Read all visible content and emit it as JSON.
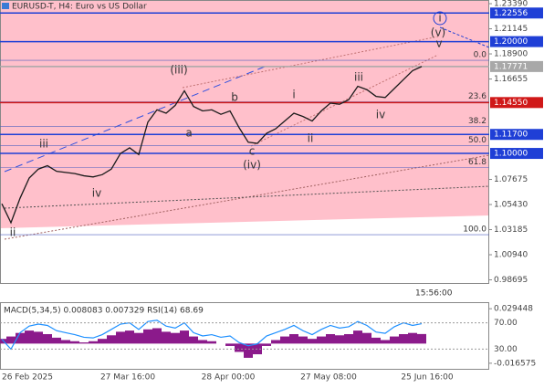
{
  "chart_data": {
    "type": "line",
    "title": "EURUSD-T, H4:  Euro vs US Dollar",
    "timer": "15:56:00",
    "color": "#1a1a1a",
    "values": [
      1.055,
      1.038,
      1.06,
      1.078,
      1.086,
      1.089,
      1.084,
      1.083,
      1.082,
      1.08,
      1.079,
      1.081,
      1.086,
      1.1,
      1.105,
      1.099,
      1.128,
      1.139,
      1.136,
      1.143,
      1.156,
      1.142,
      1.138,
      1.139,
      1.135,
      1.138,
      1.123,
      1.11,
      1.109,
      1.118,
      1.122,
      1.129,
      1.136,
      1.133,
      1.129,
      1.138,
      1.145,
      1.144,
      1.148,
      1.16,
      1.157,
      1.151,
      1.15,
      1.158,
      1.166,
      1.174,
      1.1777
    ],
    "ylim": [
      0.9833,
      1.2372
    ],
    "yticks": [
      {
        "value": 1.2339,
        "label": "1.23390"
      },
      {
        "value": 1.21145,
        "label": "1.21145"
      },
      {
        "value": 1.189,
        "label": "1.18900"
      },
      {
        "value": 1.16655,
        "label": "1.16655"
      },
      {
        "value": 1.07675,
        "label": "1.07675"
      },
      {
        "value": 1.0543,
        "label": "1.05430"
      },
      {
        "value": 1.03185,
        "label": "1.03185"
      },
      {
        "value": 1.0094,
        "label": "1.00940"
      },
      {
        "value": 0.98695,
        "label": "0.98695"
      }
    ],
    "levels": [
      {
        "value": 1.22556,
        "label": "1.22556",
        "color": "#1f3fd6"
      },
      {
        "value": 1.2,
        "label": "1.20000",
        "color": "#1f3fd6"
      },
      {
        "value": 1.17771,
        "label": "1.17771",
        "color": "#a8a8a8"
      },
      {
        "value": 1.1455,
        "label": "1.14550",
        "color": "#d01818"
      },
      {
        "value": 1.117,
        "label": "1.11700",
        "color": "#1f3fd6"
      },
      {
        "value": 1.1,
        "label": "1.10000",
        "color": "#1f3fd6"
      }
    ],
    "fib": [
      {
        "label": "0.0",
        "value": 1.1833
      },
      {
        "label": "23.6",
        "value": 1.1461
      },
      {
        "label": "38.2",
        "value": 1.1241
      },
      {
        "label": "50.0",
        "value": 1.107
      },
      {
        "label": "61.8",
        "value": 1.0875
      },
      {
        "label": "100.0",
        "value": 1.0273
      }
    ],
    "xlabels": [
      "26 Feb 2025",
      "27 Mar 16:00",
      "28 Apr 00:00",
      "27 May 08:00",
      "25 Jun 16:00"
    ],
    "annotations": [
      {
        "text": "(iii)",
        "color": "#c0392b"
      },
      {
        "text": "b",
        "color": "#777"
      },
      {
        "text": "a",
        "color": "#777"
      },
      {
        "text": "(iv)",
        "color": "#c0392b"
      },
      {
        "text": "c",
        "color": "#777"
      },
      {
        "text": "i",
        "color": "#777"
      },
      {
        "text": "ii",
        "color": "#777"
      },
      {
        "text": "iii",
        "color": "#777"
      },
      {
        "text": "iv",
        "color": "#777"
      },
      {
        "text": "(v)",
        "color": "#c0392b"
      },
      {
        "text": "v",
        "color": "#777"
      },
      {
        "text": "i",
        "color": "#1f3fd6"
      },
      {
        "text": "iii",
        "color": "#777"
      },
      {
        "text": "iv",
        "color": "#777"
      },
      {
        "text": "ii",
        "color": "#777"
      }
    ],
    "indicator": {
      "label": "MACD(5,34,5) 0.008083 0.007329 RSI(14) 68.69",
      "macd_color": "#8b1a8b",
      "rsi_color": "#1e90ff",
      "macd": [
        0.004,
        0.006,
        0.009,
        0.011,
        0.01,
        0.008,
        0.005,
        0.003,
        0.002,
        0.001,
        0.002,
        0.004,
        0.007,
        0.01,
        0.011,
        0.009,
        0.012,
        0.013,
        0.01,
        0.009,
        0.011,
        0.006,
        0.003,
        0.002,
        0.0,
        -0.002,
        -0.007,
        -0.012,
        -0.009,
        -0.002,
        0.003,
        0.006,
        0.008,
        0.006,
        0.004,
        0.006,
        0.008,
        0.007,
        0.008,
        0.011,
        0.009,
        0.005,
        0.003,
        0.006,
        0.008,
        0.009,
        0.008083
      ],
      "rsi": [
        45,
        30,
        55,
        65,
        68,
        66,
        58,
        55,
        52,
        48,
        47,
        52,
        60,
        68,
        70,
        60,
        72,
        74,
        65,
        62,
        70,
        55,
        50,
        52,
        48,
        50,
        40,
        35,
        38,
        50,
        55,
        60,
        66,
        58,
        52,
        60,
        66,
        62,
        64,
        72,
        66,
        56,
        54,
        64,
        70,
        66,
        68.69
      ],
      "ylim": [
        -0.0213,
        0.0342
      ],
      "yticks": [
        {
          "value": 0.029448,
          "label": "0.029448"
        },
        {
          "value": -0.016575,
          "label": "-0.016575"
        }
      ],
      "y2lim": [
        0,
        100
      ],
      "y2ticks": [
        {
          "value": 70,
          "label": "70.00"
        },
        {
          "value": 30,
          "label": "30.00"
        }
      ]
    }
  }
}
